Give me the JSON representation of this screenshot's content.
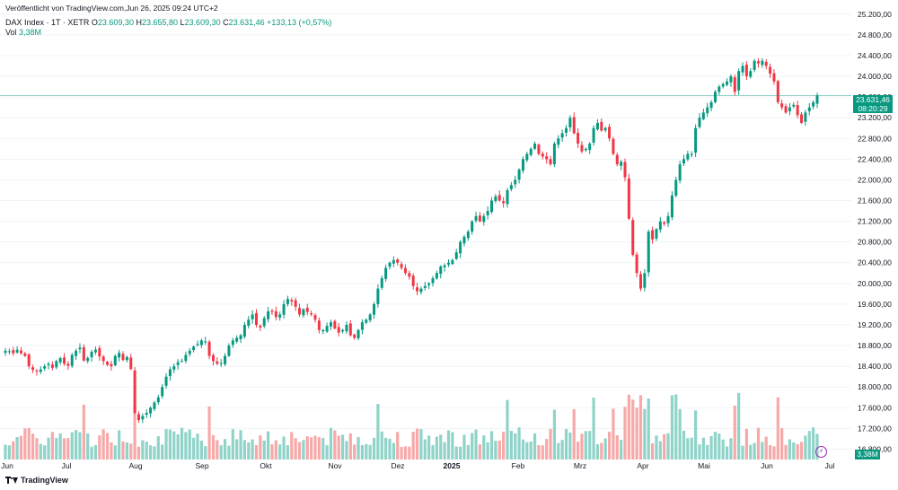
{
  "header": {
    "published": "Veröffentlicht von TradingView.com,Jun 26, 2025 09:24 UTC+2",
    "symbol": "DAX Index · 1T · XETR",
    "open_label": "O",
    "open": "23.609,30",
    "high_label": "H",
    "high": "23.655,80",
    "low_label": "L",
    "low": "23.609,30",
    "close_label": "C",
    "close": "23.631,46",
    "change": "+133,13 (+0,57%)",
    "vol_label": "Vol",
    "vol": "3,38M"
  },
  "price_tag": {
    "price": "23.631,46",
    "countdown": "08:20:29"
  },
  "vol_tag": "3,38M",
  "footer": {
    "brand": "TradingView"
  },
  "colors": {
    "up": "#089981",
    "down": "#f23645",
    "up_vol": "#8fd3c9",
    "down_vol": "#f7a9a9",
    "grid": "#f0f3fa",
    "axis_text": "#131722"
  },
  "chart_data": {
    "type": "candlestick",
    "title": "DAX Index · 1T · XETR",
    "y_axis": {
      "ticks": [
        "16.800,00",
        "17.200,00",
        "17.600,00",
        "18.000,00",
        "18.400,00",
        "18.800,00",
        "19.200,00",
        "19.600,00",
        "20.000,00",
        "20.400,00",
        "20.800,00",
        "21.200,00",
        "21.600,00",
        "22.000,00",
        "22.400,00",
        "22.800,00",
        "23.200,00",
        "23.600,00",
        "24.000,00",
        "24.400,00",
        "24.800,00",
        "25.200,00"
      ],
      "range": [
        16600,
        25300
      ]
    },
    "x_axis": {
      "ticks": [
        "Jun",
        "Jul",
        "Aug",
        "Sep",
        "Okt",
        "Nov",
        "Dez",
        "2025",
        "Feb",
        "Mrz",
        "Apr",
        "Mai",
        "Jun",
        "Jul"
      ]
    },
    "last_close": 23631.46,
    "close_series": [
      18700,
      18690,
      18650,
      18720,
      18650,
      18600,
      18400,
      18330,
      18310,
      18340,
      18400,
      18450,
      18370,
      18500,
      18560,
      18450,
      18410,
      18620,
      18700,
      18760,
      18510,
      18560,
      18680,
      18720,
      18590,
      18500,
      18430,
      18400,
      18600,
      18660,
      18520,
      18580,
      18350,
      17500,
      17360,
      17440,
      17500,
      17600,
      17700,
      17800,
      18000,
      18200,
      18340,
      18400,
      18480,
      18500,
      18620,
      18700,
      18780,
      18830,
      18900,
      18880,
      18600,
      18500,
      18450,
      18460,
      18600,
      18800,
      18900,
      18950,
      19000,
      19200,
      19300,
      19400,
      19200,
      19150,
      19330,
      19460,
      19450,
      19350,
      19400,
      19600,
      19700,
      19650,
      19550,
      19400,
      19500,
      19450,
      19400,
      19300,
      19100,
      19100,
      19180,
      19250,
      19130,
      19050,
      19100,
      19200,
      19000,
      18950,
      19100,
      19250,
      19300,
      19400,
      19600,
      19900,
      20100,
      20300,
      20400,
      20450,
      20400,
      20300,
      20200,
      20130,
      19950,
      19850,
      19900,
      19950,
      20000,
      20100,
      20200,
      20330,
      20350,
      20400,
      20450,
      20600,
      20800,
      20900,
      21000,
      21200,
      21300,
      21200,
      21300,
      21400,
      21600,
      21680,
      21600,
      21550,
      21800,
      21900,
      22000,
      22200,
      22400,
      22500,
      22600,
      22700,
      22500,
      22450,
      22400,
      22300,
      22700,
      22800,
      22900,
      23000,
      23200,
      22900,
      22700,
      22550,
      22600,
      22700,
      23000,
      23100,
      22950,
      23000,
      22800,
      22500,
      22300,
      22350,
      22050,
      21250,
      20550,
      20200,
      19900,
      20200,
      21000,
      20850,
      21050,
      21200,
      21150,
      21300,
      21700,
      22000,
      22300,
      22400,
      22500,
      22500,
      23000,
      23200,
      23300,
      23400,
      23500,
      23700,
      23800,
      23850,
      23900,
      24000,
      23700,
      24100,
      24200,
      24000,
      24100,
      24300,
      24250,
      24300,
      24200,
      24050,
      23900,
      23500,
      23400,
      23300,
      23400,
      23450,
      23250,
      23100,
      23300,
      23400,
      23500,
      23630
    ]
  }
}
